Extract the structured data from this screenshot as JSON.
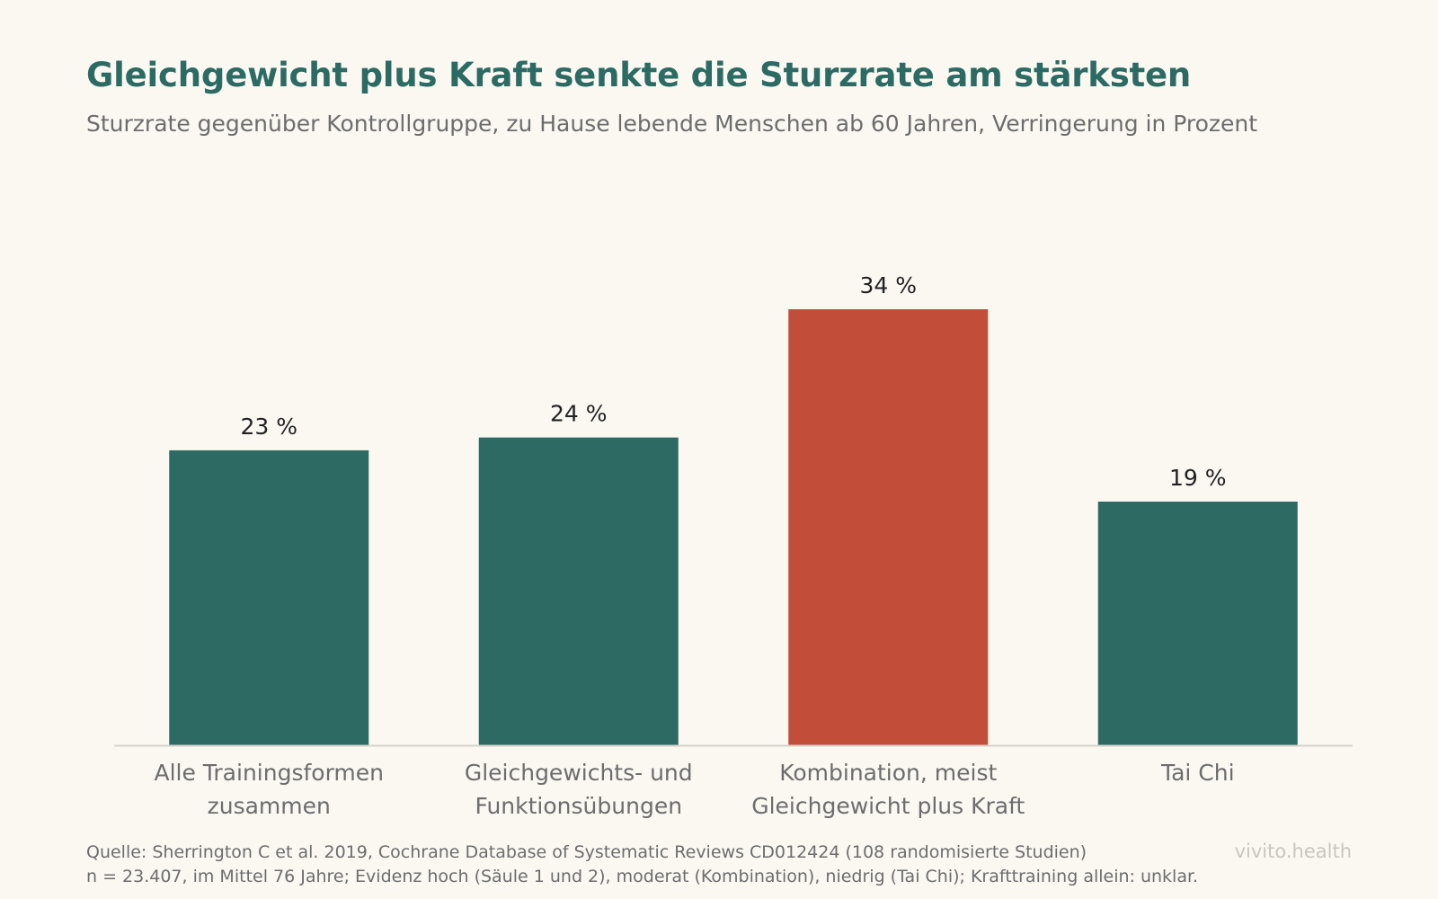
{
  "title": "Gleichgewicht plus Kraft senkte die Sturzrate am stärksten",
  "subtitle": "Sturzrate gegenüber Kontrollgruppe, zu Hause lebende Menschen ab 60 Jahren, Verringerung in Prozent",
  "chart_data": {
    "type": "bar",
    "categories": [
      [
        "Alle Trainingsformen",
        "zusammen"
      ],
      [
        "Gleichgewichts- und",
        "Funktionsübungen"
      ],
      [
        "Kombination, meist",
        "Gleichgewicht plus Kraft"
      ],
      [
        "Tai Chi"
      ]
    ],
    "values": [
      23,
      24,
      34,
      19
    ],
    "value_labels": [
      "23 %",
      "24 %",
      "34 %",
      "19 %"
    ],
    "highlight_index": 2,
    "colors": {
      "default": "#2d6a63",
      "highlight": "#c24e3a",
      "baseline": "#d6d3cd"
    },
    "ylim": [
      0,
      34
    ],
    "grid": false,
    "legend": "none"
  },
  "footer": {
    "source_line1": "Quelle: Sherrington C et al. 2019, Cochrane Database of Systematic Reviews CD012424 (108 randomisierte Studien)",
    "source_line2": "n = 23.407, im Mittel 76 Jahre; Evidenz hoch (Säule 1 und 2), moderat (Kombination), niedrig (Tai Chi); Krafttraining allein: unklar.",
    "brand": "vivito.health"
  }
}
